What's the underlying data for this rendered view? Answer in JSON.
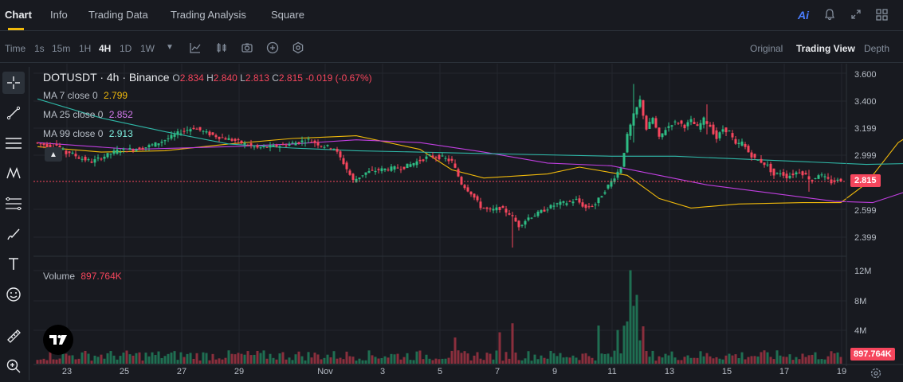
{
  "nav": {
    "tabs": [
      {
        "label": "Chart"
      },
      {
        "label": "Info"
      },
      {
        "label": "Trading Data"
      },
      {
        "label": "Trading Analysis"
      },
      {
        "label": "Square"
      }
    ],
    "ai_label": "Ai"
  },
  "toolbar": {
    "time_label": "Time",
    "intervals": [
      "1s",
      "15m",
      "1H",
      "4H",
      "1D",
      "1W"
    ],
    "active_interval": "4H",
    "views": [
      "Original",
      "Trading View",
      "Depth"
    ],
    "active_view": "Trading View"
  },
  "legend": {
    "symbol": "DOTUSDT",
    "sep": "·",
    "interval": "4h",
    "exchange": "Binance",
    "o_label": "O",
    "o": "2.834",
    "h_label": "H",
    "h": "2.840",
    "l_label": "L",
    "l": "2.813",
    "c_label": "C",
    "c": "2.815",
    "change": "-0.019 (-0.67%)",
    "ma7_label": "MA 7 close 0",
    "ma7": "2.799",
    "ma25_label": "MA 25 close 0",
    "ma25": "2.852",
    "ma99_label": "MA 99 close 0",
    "ma99": "2.913",
    "volume_label": "Volume",
    "volume": "897.764K"
  },
  "price_axis": [
    "3.600",
    "3.400",
    "3.199",
    "2.999",
    "2.599",
    "2.399"
  ],
  "last_price": "2.815",
  "volume_axis": [
    "12M",
    "8M",
    "4M"
  ],
  "last_volume": "897.764K",
  "date_axis": [
    "23",
    "25",
    "27",
    "29",
    "Nov",
    "3",
    "5",
    "7",
    "9",
    "11",
    "13",
    "15",
    "17",
    "19"
  ],
  "colors": {
    "up": "#2ebd85",
    "down": "#f6465d",
    "ma7": "#f0b90b",
    "ma25": "#c03fe0",
    "ma99": "#2fb8a8",
    "accent": "#f0b90b"
  },
  "chart_data": {
    "type": "candlestick",
    "symbol": "DOTUSDT",
    "interval": "4h",
    "ylim": [
      2.3,
      3.65
    ],
    "volume_ylim": [
      0,
      13
    ],
    "volume_unit": "M",
    "series": [
      {
        "name": "MA 7 close 0",
        "points": [
          [
            0,
            3.07
          ],
          [
            20,
            3.03
          ],
          [
            40,
            3.04
          ],
          [
            60,
            3.09
          ],
          [
            80,
            3.13
          ],
          [
            100,
            3.15
          ],
          [
            120,
            3.05
          ],
          [
            130,
            2.9
          ],
          [
            140,
            2.84
          ],
          [
            160,
            2.87
          ],
          [
            170,
            2.92
          ],
          [
            185,
            2.86
          ],
          [
            195,
            2.69
          ],
          [
            205,
            2.62
          ],
          [
            220,
            2.65
          ],
          [
            240,
            2.66
          ],
          [
            252,
            2.66
          ],
          [
            260,
            2.8
          ],
          [
            270,
            3.1
          ],
          [
            280,
            3.25
          ],
          [
            290,
            3.26
          ],
          [
            300,
            3.24
          ],
          [
            310,
            3.27
          ],
          [
            320,
            3.24
          ],
          [
            330,
            3.15
          ],
          [
            340,
            3.02
          ],
          [
            350,
            2.92
          ],
          [
            360,
            2.87
          ],
          [
            380,
            2.86
          ],
          [
            395,
            2.83
          ],
          [
            405,
            2.79
          ],
          [
            410,
            2.8
          ]
        ]
      },
      {
        "name": "MA 25 close 0",
        "points": [
          [
            0,
            3.1
          ],
          [
            30,
            3.05
          ],
          [
            60,
            3.07
          ],
          [
            80,
            3.09
          ],
          [
            100,
            3.12
          ],
          [
            120,
            3.1
          ],
          [
            140,
            3.03
          ],
          [
            160,
            2.95
          ],
          [
            180,
            2.93
          ],
          [
            195,
            2.86
          ],
          [
            210,
            2.79
          ],
          [
            230,
            2.73
          ],
          [
            250,
            2.67
          ],
          [
            262,
            2.66
          ],
          [
            275,
            2.76
          ],
          [
            290,
            2.92
          ],
          [
            305,
            3.05
          ],
          [
            320,
            3.15
          ],
          [
            330,
            3.22
          ],
          [
            340,
            3.19
          ],
          [
            350,
            3.14
          ],
          [
            365,
            3.04
          ],
          [
            380,
            2.95
          ],
          [
            395,
            2.88
          ],
          [
            405,
            2.85
          ],
          [
            410,
            2.85
          ]
        ]
      },
      {
        "name": "MA 99 close 0",
        "points": [
          [
            0,
            3.42
          ],
          [
            20,
            3.28
          ],
          [
            40,
            3.18
          ],
          [
            60,
            3.09
          ],
          [
            80,
            3.06
          ],
          [
            100,
            3.04
          ],
          [
            140,
            3.02
          ],
          [
            180,
            3.0
          ],
          [
            200,
            3.0
          ],
          [
            220,
            2.98
          ],
          [
            240,
            2.96
          ],
          [
            260,
            2.94
          ],
          [
            280,
            2.95
          ],
          [
            310,
            2.97
          ],
          [
            330,
            2.97
          ],
          [
            350,
            2.96
          ],
          [
            370,
            2.95
          ],
          [
            390,
            2.93
          ],
          [
            410,
            2.92
          ]
        ]
      }
    ],
    "anchors": [
      [
        0,
        3.1,
        3.07
      ],
      [
        6,
        3.1,
        3.02
      ],
      [
        10,
        3.04,
        2.99
      ],
      [
        14,
        2.99,
        2.96
      ],
      [
        18,
        2.96,
        3.0
      ],
      [
        22,
        3.0,
        3.04
      ],
      [
        26,
        3.04,
        3.05
      ],
      [
        30,
        3.05,
        3.06
      ],
      [
        34,
        3.06,
        3.09
      ],
      [
        38,
        3.09,
        3.13
      ],
      [
        42,
        3.13,
        3.18
      ],
      [
        46,
        3.18,
        3.21
      ],
      [
        50,
        3.21,
        3.17
      ],
      [
        54,
        3.17,
        3.14
      ],
      [
        58,
        3.14,
        3.12
      ],
      [
        62,
        3.12,
        3.09
      ],
      [
        66,
        3.09,
        3.06
      ],
      [
        70,
        3.06,
        3.07
      ],
      [
        74,
        3.07,
        3.08
      ],
      [
        78,
        3.08,
        3.1
      ],
      [
        82,
        3.1,
        3.12
      ],
      [
        86,
        3.12,
        3.08
      ],
      [
        90,
        3.08,
        3.06
      ],
      [
        94,
        3.06,
        2.95
      ],
      [
        97,
        2.95,
        2.82
      ],
      [
        100,
        2.82,
        2.88
      ],
      [
        104,
        2.88,
        2.9
      ],
      [
        108,
        2.9,
        2.91
      ],
      [
        112,
        2.91,
        2.92
      ],
      [
        116,
        2.92,
        2.96
      ],
      [
        120,
        2.96,
        3.0
      ],
      [
        124,
        3.0,
        2.99
      ],
      [
        128,
        2.99,
        2.96
      ],
      [
        131,
        2.96,
        2.8
      ],
      [
        134,
        2.8,
        2.73
      ],
      [
        137,
        2.73,
        2.63
      ],
      [
        140,
        2.63,
        2.6
      ],
      [
        143,
        2.6,
        2.62
      ],
      [
        146,
        2.62,
        2.58
      ],
      [
        149,
        2.58,
        2.49
      ],
      [
        152,
        2.49,
        2.55
      ],
      [
        155,
        2.55,
        2.58
      ],
      [
        158,
        2.58,
        2.62
      ],
      [
        161,
        2.62,
        2.65
      ],
      [
        164,
        2.65,
        2.66
      ],
      [
        167,
        2.66,
        2.68
      ],
      [
        170,
        2.68,
        2.62
      ],
      [
        173,
        2.62,
        2.65
      ],
      [
        176,
        2.65,
        2.75
      ],
      [
        179,
        2.75,
        2.85
      ],
      [
        182,
        2.85,
        2.92
      ],
      [
        184,
        2.92,
        3.15
      ],
      [
        186,
        3.15,
        3.3
      ],
      [
        188,
        3.3,
        3.41
      ],
      [
        190,
        3.41,
        3.2
      ],
      [
        192,
        3.2,
        3.28
      ],
      [
        194,
        3.28,
        3.13
      ],
      [
        196,
        3.13,
        3.2
      ],
      [
        198,
        3.2,
        3.24
      ],
      [
        200,
        3.24,
        3.25
      ],
      [
        202,
        3.25,
        3.22
      ],
      [
        204,
        3.22,
        3.26
      ],
      [
        206,
        3.26,
        3.21
      ],
      [
        208,
        3.21,
        3.27
      ],
      [
        210,
        3.27,
        3.22
      ],
      [
        212,
        3.22,
        3.13
      ],
      [
        214,
        3.13,
        3.2
      ],
      [
        216,
        3.2,
        3.18
      ],
      [
        218,
        3.18,
        3.08
      ],
      [
        220,
        3.08,
        3.1
      ],
      [
        222,
        3.1,
        3.03
      ],
      [
        224,
        3.03,
        2.98
      ],
      [
        226,
        2.98,
        2.96
      ],
      [
        228,
        2.96,
        2.93
      ],
      [
        230,
        2.93,
        2.86
      ],
      [
        232,
        2.86,
        2.88
      ],
      [
        234,
        2.88,
        2.85
      ],
      [
        236,
        2.85,
        2.87
      ],
      [
        238,
        2.87,
        2.89
      ],
      [
        240,
        2.89,
        2.86
      ],
      [
        242,
        2.86,
        2.82
      ],
      [
        244,
        2.82,
        2.87
      ],
      [
        246,
        2.87,
        2.84
      ],
      [
        248,
        2.84,
        2.81
      ],
      [
        250,
        2.81,
        2.82
      ],
      [
        252,
        2.82,
        2.815
      ]
    ]
  }
}
